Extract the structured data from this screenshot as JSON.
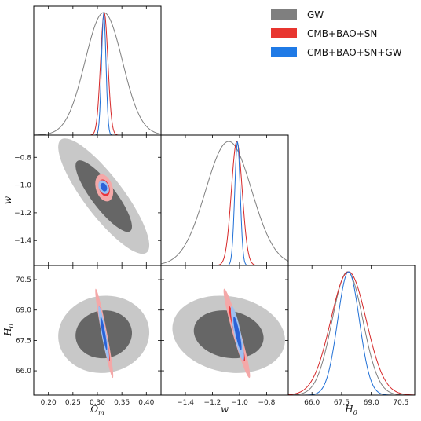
{
  "chart_data": {
    "type": "corner",
    "params": [
      "Ω_m",
      "w",
      "H_0"
    ],
    "axis_labels": {
      "Om": "Ωm",
      "w": "w",
      "H0": "H0"
    },
    "ranges": {
      "Om": [
        0.17,
        0.43
      ],
      "w": [
        -1.58,
        -0.64
      ],
      "H0": [
        64.8,
        71.2
      ]
    },
    "ticks": {
      "Om": [
        0.2,
        0.25,
        0.3,
        0.35,
        0.4
      ],
      "Om_labels": [
        "0.20",
        "0.25",
        "0.30",
        "0.35",
        "0.40"
      ],
      "w": [
        -1.4,
        -1.2,
        -1.0,
        -0.8
      ],
      "w_labels": [
        "−1.4",
        "−1.2",
        "−1.0",
        "−0.8"
      ],
      "H0": [
        66.0,
        67.5,
        69.0,
        70.5
      ],
      "H0_labels": [
        "66.0",
        "67.5",
        "69.0",
        "70.5"
      ]
    },
    "legend": {
      "placement": "top-right",
      "entries": [
        "GW",
        "CMB+BAO+SN",
        "CMB+BAO+SN+GW"
      ]
    },
    "series": [
      {
        "name": "GW",
        "color": "#7f7f7f",
        "fill_inner": "#666666",
        "fill_outer": "#c8c8c8",
        "mean": {
          "Om": 0.313,
          "w": -1.08,
          "H0": 67.8
        },
        "sigma": {
          "Om": 0.038,
          "w": 0.17,
          "H0": 0.78
        },
        "corr": {
          "Om_w": -0.85,
          "Om_H0": 0.05,
          "w_H0": -0.15
        }
      },
      {
        "name": "CMB+BAO+SN",
        "color": "#d62728",
        "fill_inner": "#e8353a",
        "fill_outer": "#f4a8a8",
        "mean": {
          "Om": 0.314,
          "w": -1.02,
          "H0": 67.85
        },
        "sigma": {
          "Om": 0.0075,
          "w": 0.04,
          "H0": 0.9
        },
        "corr": {
          "Om_w": -0.3,
          "Om_H0": -0.95,
          "w_H0": -0.95
        }
      },
      {
        "name": "CMB+BAO+SN+GW",
        "color": "#1f6fd6",
        "fill_inner": "#2a62d8",
        "fill_outer": "#9dc0f0",
        "mean": {
          "Om": 0.313,
          "w": -1.015,
          "H0": 67.85
        },
        "sigma": {
          "Om": 0.0045,
          "w": 0.02,
          "H0": 0.55
        },
        "corr": {
          "Om_w": -0.3,
          "Om_H0": -0.9,
          "w_H0": -0.85
        }
      }
    ]
  }
}
